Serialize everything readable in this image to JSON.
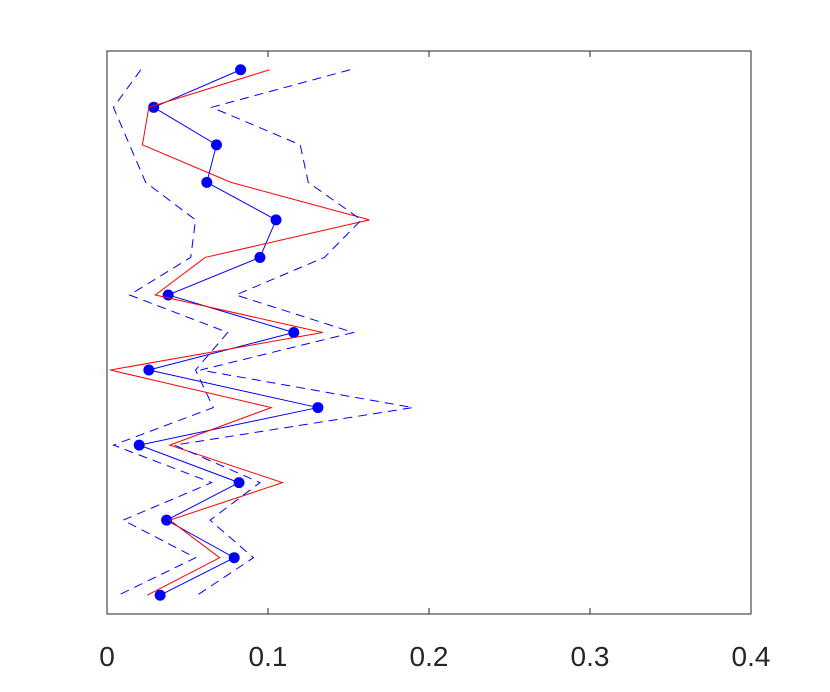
{
  "chart_data": {
    "type": "line",
    "orientation": "horizontal-values",
    "xlim": [
      0,
      0.4
    ],
    "x_ticks": [
      0,
      0.1,
      0.2,
      0.3,
      0.4
    ],
    "x_tick_labels": [
      "0",
      "0.1",
      "0.2",
      "0.3",
      "0.4"
    ],
    "ylim": [
      0.5,
      15.5
    ],
    "y_ticks_visible": false,
    "grid": false,
    "legend": "none",
    "series": [
      {
        "style": "solid-with-markers",
        "color": "#0000ff",
        "values": [
          0.083,
          0.029,
          0.068,
          0.062,
          0.105,
          0.095,
          0.038,
          0.116,
          0.026,
          0.131,
          0.02,
          0.082,
          0.037,
          0.079,
          0.033
        ]
      },
      {
        "style": "solid",
        "color": "#ff0000",
        "values": [
          0.101,
          0.026,
          0.022,
          0.077,
          0.163,
          0.061,
          0.03,
          0.134,
          0.002,
          0.102,
          0.039,
          0.109,
          0.039,
          0.07,
          0.025
        ]
      },
      {
        "style": "dashed",
        "color": "#0000ff",
        "values": [
          0.021,
          0.004,
          0.014,
          0.024,
          0.055,
          0.052,
          0.014,
          0.075,
          0.055,
          0.066,
          0.004,
          0.065,
          0.01,
          0.055,
          0.007
        ]
      },
      {
        "style": "dashed",
        "color": "#0000ff",
        "values": [
          0.151,
          0.065,
          0.12,
          0.125,
          0.158,
          0.135,
          0.08,
          0.153,
          0.058,
          0.19,
          0.042,
          0.095,
          0.064,
          0.091,
          0.056
        ]
      }
    ]
  }
}
